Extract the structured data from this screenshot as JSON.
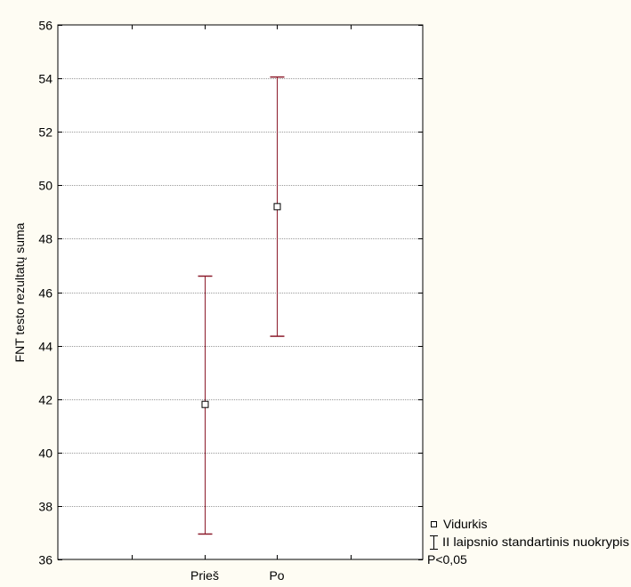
{
  "chart_data": {
    "type": "scatter",
    "ylabel": "FNT testo rezultatų suma",
    "xlabel": "",
    "ylim": [
      36,
      56
    ],
    "yticks": [
      36,
      38,
      40,
      42,
      44,
      46,
      48,
      50,
      52,
      54,
      56
    ],
    "categories": [
      "Prieš",
      "Po"
    ],
    "series": [
      {
        "name": "Vidurkis",
        "values": [
          41.8,
          49.2
        ],
        "error_low": [
          36.95,
          44.35
        ],
        "error_high": [
          46.6,
          54.05
        ]
      }
    ],
    "grid": true,
    "legend": {
      "position": "right-bottom",
      "items": [
        "Vidurkis",
        "II laipsnio standartinis nuokrypis"
      ]
    },
    "annotation": "P<0,05",
    "colors": {
      "background": "#fefcf3",
      "plot_background": "#ffffff",
      "error_bar": "#8b1a2a",
      "axis": "#000000",
      "grid": "#9a9a9a"
    }
  }
}
